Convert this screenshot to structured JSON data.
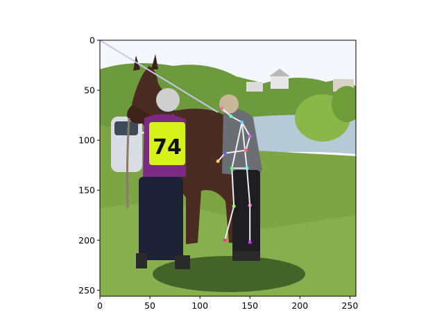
{
  "figure": {
    "image_subject": "photo",
    "bib_number": "74",
    "x_ticks": [
      "0",
      "50",
      "100",
      "150",
      "200",
      "250"
    ],
    "y_ticks": [
      "0",
      "50",
      "100",
      "150",
      "200",
      "250"
    ],
    "xlim": [
      0,
      256
    ],
    "ylim": [
      256,
      0
    ]
  },
  "pose_keypoints": [
    {
      "x": 122,
      "y": 68
    },
    {
      "x": 131,
      "y": 76
    },
    {
      "x": 142,
      "y": 82
    },
    {
      "x": 150,
      "y": 96
    },
    {
      "x": 146,
      "y": 110
    },
    {
      "x": 125,
      "y": 113
    },
    {
      "x": 118,
      "y": 121
    },
    {
      "x": 132,
      "y": 128
    },
    {
      "x": 147,
      "y": 128
    },
    {
      "x": 134,
      "y": 166
    },
    {
      "x": 150,
      "y": 165
    },
    {
      "x": 125,
      "y": 200
    },
    {
      "x": 150,
      "y": 202
    }
  ],
  "pose_limbs": [
    [
      0,
      1
    ],
    [
      1,
      2
    ],
    [
      2,
      3
    ],
    [
      3,
      4
    ],
    [
      4,
      5
    ],
    [
      5,
      6
    ],
    [
      2,
      7
    ],
    [
      2,
      8
    ],
    [
      7,
      8
    ],
    [
      7,
      9
    ],
    [
      8,
      10
    ],
    [
      9,
      11
    ],
    [
      10,
      12
    ]
  ],
  "overlay_line": {
    "x1": 0,
    "y1": 0,
    "x2": 118,
    "y2": 72
  },
  "colors": {
    "sky": "#f4f7fb",
    "grass": "#7ea544",
    "horse": "#4a2c22",
    "jacket": "#7b2a84",
    "bib": "#d6f21b",
    "pose": "#f0f0f5"
  }
}
